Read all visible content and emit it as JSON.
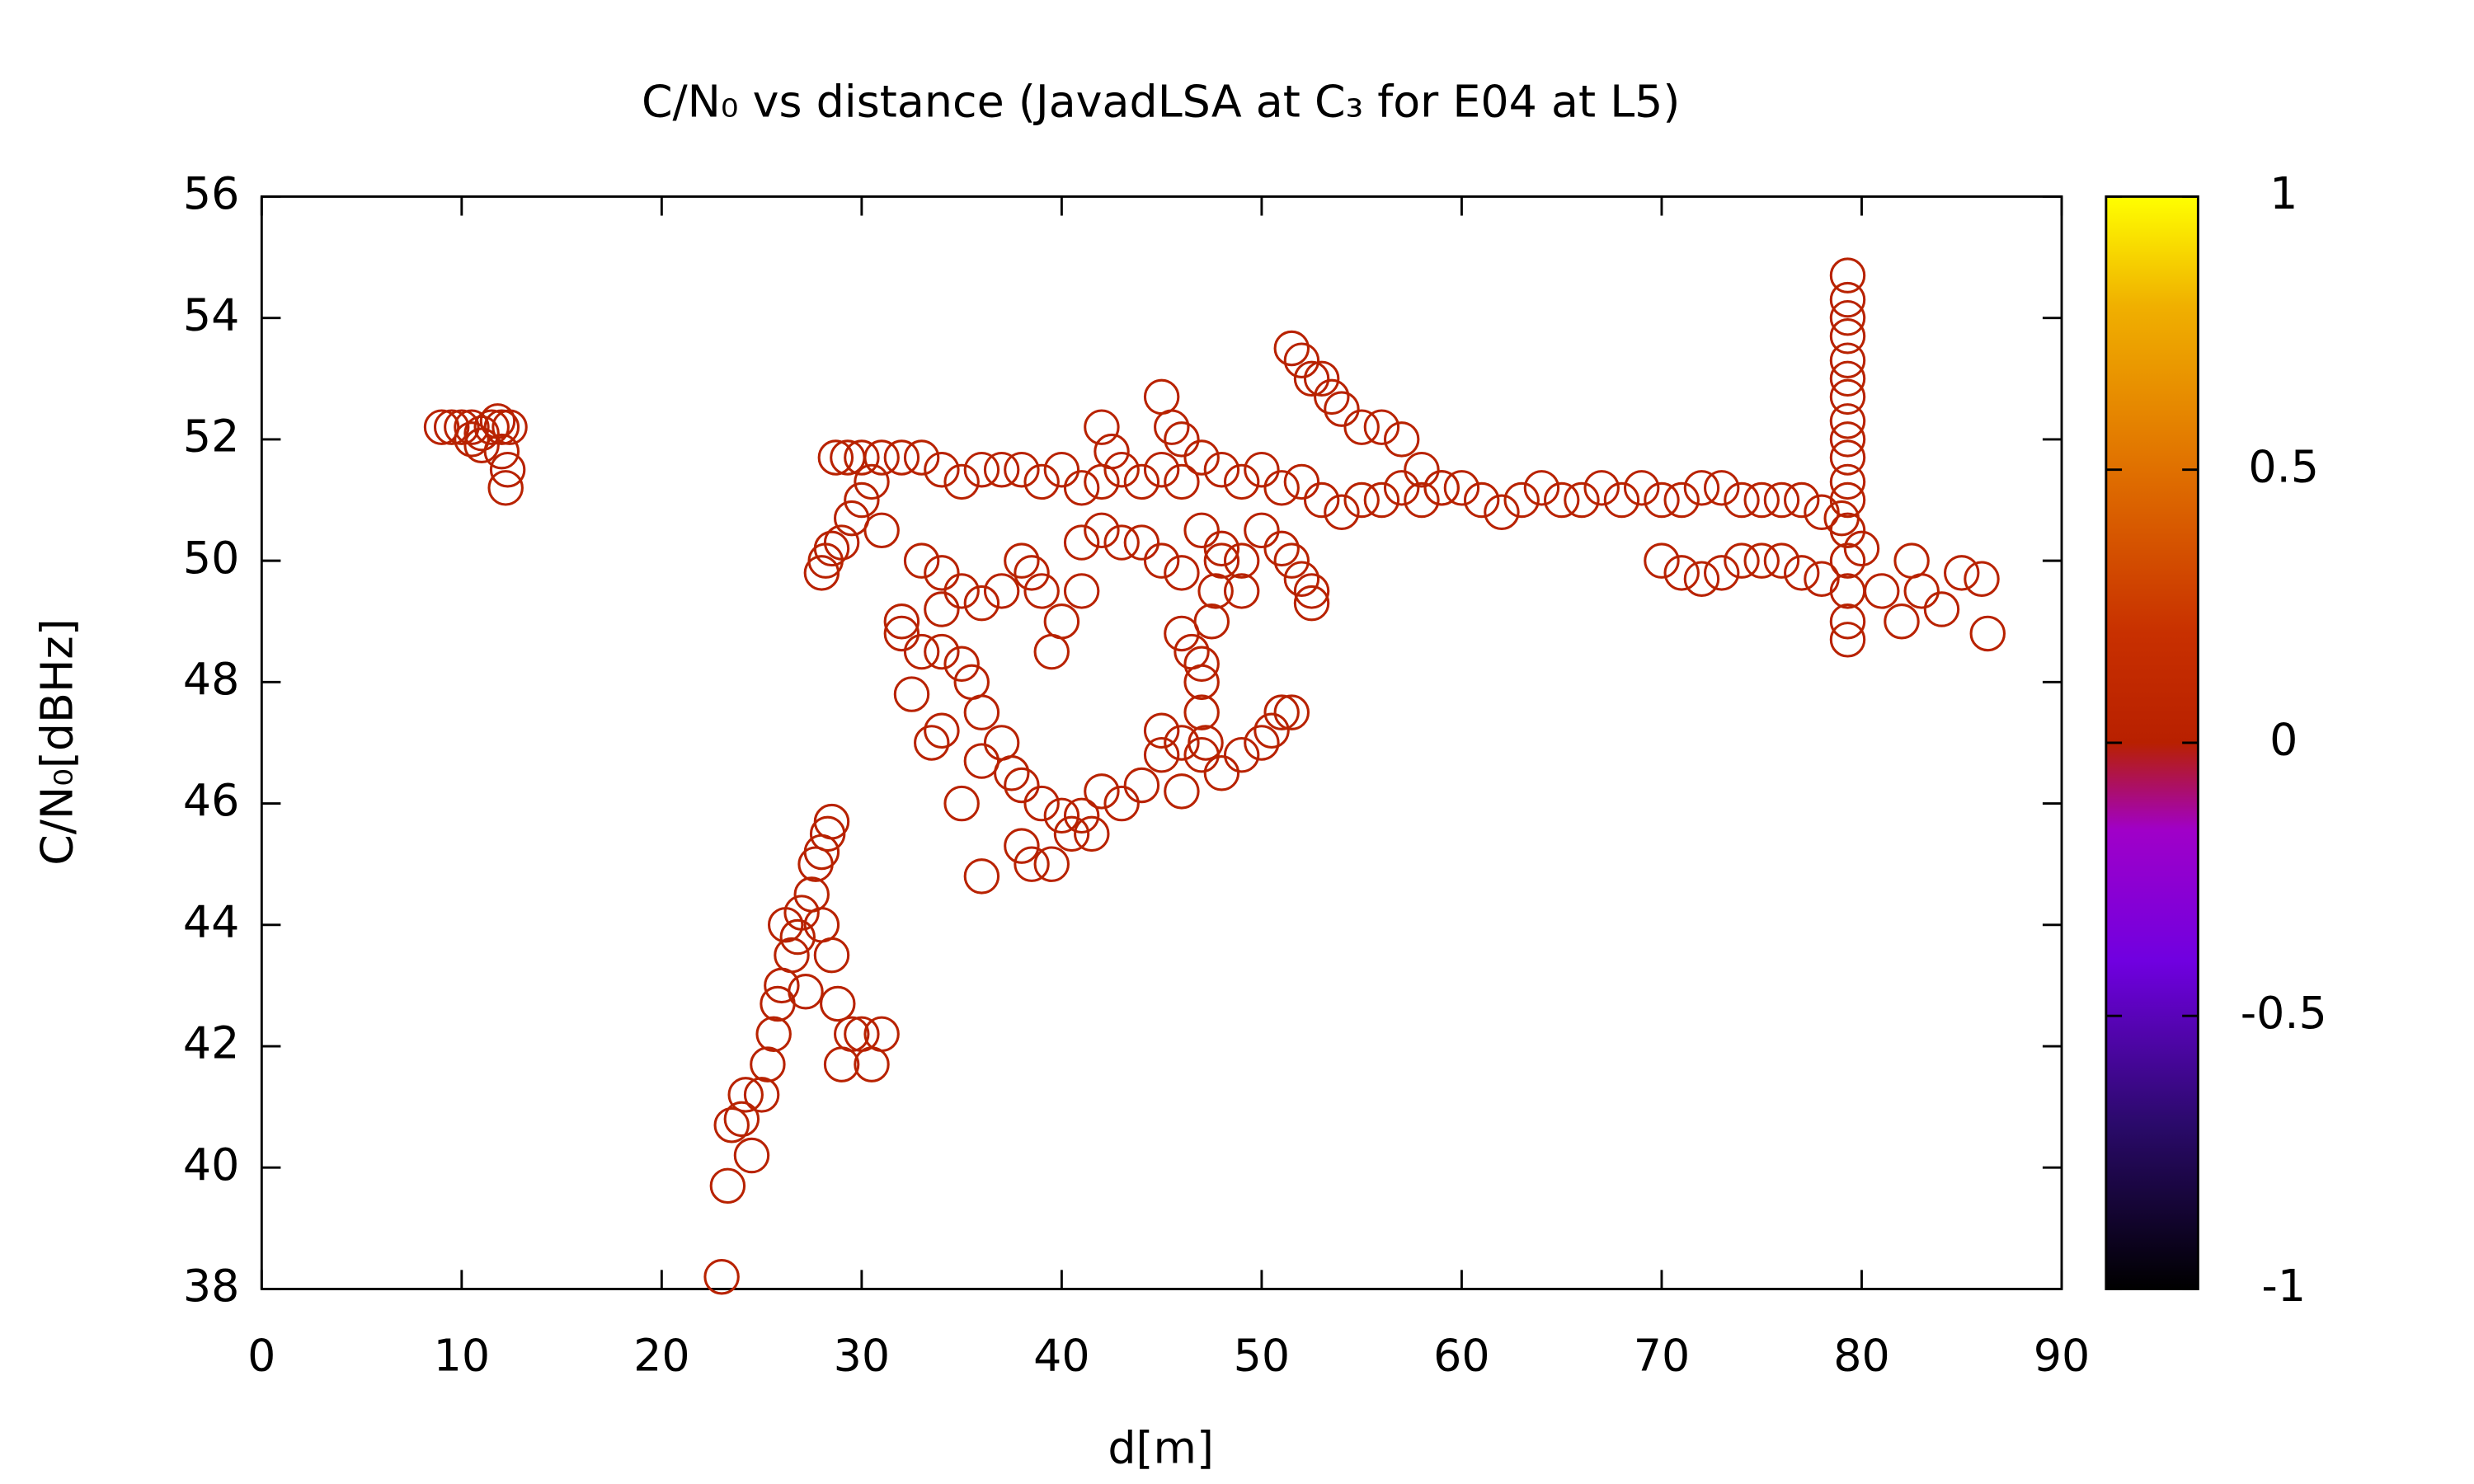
{
  "chart_data": {
    "type": "scatter",
    "title": "C/N₀ vs distance (JavadLSA at C₃ for E04 at L5)",
    "xlabel": "d[m]",
    "ylabel": "C/N₀[dBHz]",
    "color": "#b82200",
    "xlim": [
      0,
      90
    ],
    "xticks": [
      0,
      10,
      20,
      30,
      40,
      50,
      60,
      70,
      80,
      90
    ],
    "ylim": [
      38,
      56
    ],
    "yticks": [
      38,
      40,
      42,
      44,
      46,
      48,
      50,
      52,
      54,
      56
    ],
    "cblim": [
      -1,
      1
    ],
    "cbticks": [
      -1,
      -0.5,
      0,
      0.5,
      1
    ],
    "x": [
      9,
      9.5,
      10,
      10.5,
      11,
      11.5,
      12,
      10.5,
      11,
      12,
      12.3,
      12.2,
      12.4,
      11.8,
      23,
      23.3,
      23.5,
      24,
      24.2,
      24.5,
      25,
      25.3,
      25.6,
      25.8,
      26,
      26.2,
      26.5,
      26.8,
      27,
      27.2,
      27.5,
      27.7,
      28,
      28,
      28.3,
      28.5,
      28.5,
      28.8,
      29,
      29.5,
      30,
      30.5,
      31,
      28,
      28.2,
      28.5,
      29,
      29.5,
      30,
      30.5,
      31,
      28.7,
      29.3,
      30,
      31,
      32,
      33,
      34,
      35,
      36,
      37,
      38,
      39,
      40,
      41,
      42,
      43,
      44,
      45,
      46,
      47,
      48,
      49,
      50,
      51,
      52,
      53,
      54,
      55,
      56,
      57,
      58,
      59,
      60,
      61,
      62,
      63,
      64,
      65,
      66,
      67,
      68,
      69,
      70,
      71,
      72,
      73,
      74,
      75,
      76,
      77,
      78,
      79,
      51.5,
      52,
      52.5,
      53,
      53.5,
      54,
      55,
      56,
      57,
      58,
      59,
      79.3,
      79.3,
      79.3,
      79.3,
      79.3,
      79.3,
      79.3,
      79.3,
      79.3,
      79.3,
      79.3,
      79.3,
      79.3,
      79.3,
      79.3,
      79.3,
      79.3,
      70,
      71,
      72,
      73,
      74,
      75,
      76,
      77,
      78,
      80,
      81,
      82,
      82.5,
      83,
      84,
      85,
      86,
      86.3,
      45,
      45.5,
      46,
      44,
      45,
      46,
      47,
      48,
      49,
      50,
      51,
      52,
      52.5,
      52.5,
      51.5,
      42,
      42.5,
      41,
      42,
      43,
      49,
      46,
      46.5,
      47,
      47,
      47.2,
      47.5,
      47.7,
      48,
      47,
      33,
      34,
      34,
      35,
      36,
      37,
      38,
      39,
      40,
      41,
      38.5,
      39.5,
      32,
      32,
      33,
      34,
      35,
      35.5,
      36,
      37,
      37.5,
      38,
      39,
      40,
      41,
      41.5,
      42,
      43,
      44,
      45,
      45,
      46,
      47,
      48,
      49,
      50,
      50.5,
      51,
      51.5,
      32.5,
      33.5,
      34,
      35,
      36,
      36,
      38.5,
      39.5,
      40.5,
      46,
      38
    ],
    "values": [
      52.2,
      52.2,
      52.2,
      52.2,
      52.1,
      52.2,
      52.2,
      52,
      51.9,
      51.8,
      51.5,
      51.2,
      52.2,
      52.3,
      38.2,
      39.7,
      40.7,
      40.8,
      41.2,
      40.2,
      41.2,
      41.7,
      42.2,
      42.7,
      43,
      44,
      43.5,
      43.8,
      44.2,
      42.9,
      44.5,
      45,
      44,
      45.2,
      45.5,
      45.7,
      43.5,
      42.7,
      41.7,
      42.2,
      42.2,
      41.7,
      42.2,
      49.8,
      50,
      50.2,
      50.3,
      50.7,
      51,
      51.3,
      50.5,
      51.7,
      51.7,
      51.7,
      51.7,
      51.7,
      51.7,
      51.5,
      51.3,
      51.5,
      51.5,
      51.5,
      51.3,
      51.5,
      51.2,
      51.3,
      51.5,
      51.3,
      51.5,
      51.3,
      51.7,
      51.5,
      51.3,
      51.5,
      51.2,
      51.3,
      51,
      50.8,
      51,
      51,
      51.2,
      51,
      51.2,
      51.2,
      51,
      50.8,
      51,
      51.2,
      51,
      51,
      51.2,
      51,
      51.2,
      51,
      51,
      51.2,
      51.2,
      51,
      51,
      51,
      51,
      50.8,
      50.7,
      53.5,
      53.3,
      53,
      53,
      52.7,
      52.5,
      52.2,
      52.2,
      52,
      51.5,
      51.2,
      54.7,
      54.3,
      54,
      53.7,
      53.3,
      53,
      52.7,
      52.3,
      52,
      51.7,
      51.3,
      51,
      50.5,
      50,
      49.5,
      49,
      48.7,
      50,
      49.8,
      49.7,
      49.8,
      50,
      50,
      50,
      49.8,
      49.7,
      50.2,
      49.5,
      49,
      50,
      49.5,
      49.2,
      49.8,
      49.7,
      48.8,
      52.7,
      52.2,
      52,
      50.3,
      50,
      49.8,
      50.5,
      50.2,
      50,
      50.5,
      50.2,
      49.7,
      49.5,
      49.3,
      50,
      52.2,
      51.8,
      50.3,
      50.5,
      50.3,
      49.5,
      48.8,
      48.5,
      48,
      47.5,
      47,
      49,
      49.5,
      50,
      48.3,
      50,
      49.8,
      49.2,
      49.5,
      49.3,
      49.5,
      50,
      49.5,
      49,
      49.5,
      49.8,
      48.5,
      49,
      48.8,
      48.5,
      48.5,
      48.3,
      48,
      47.5,
      47,
      46.5,
      46.3,
      46,
      45.8,
      45.8,
      45.5,
      46.2,
      46,
      46.3,
      46.8,
      47.2,
      47,
      46.8,
      46.5,
      46.8,
      47,
      47.2,
      47.5,
      47.5,
      47.8,
      47,
      47.2,
      46,
      46.7,
      44.8,
      45,
      45,
      45.5,
      46.2,
      45.3
    ]
  }
}
